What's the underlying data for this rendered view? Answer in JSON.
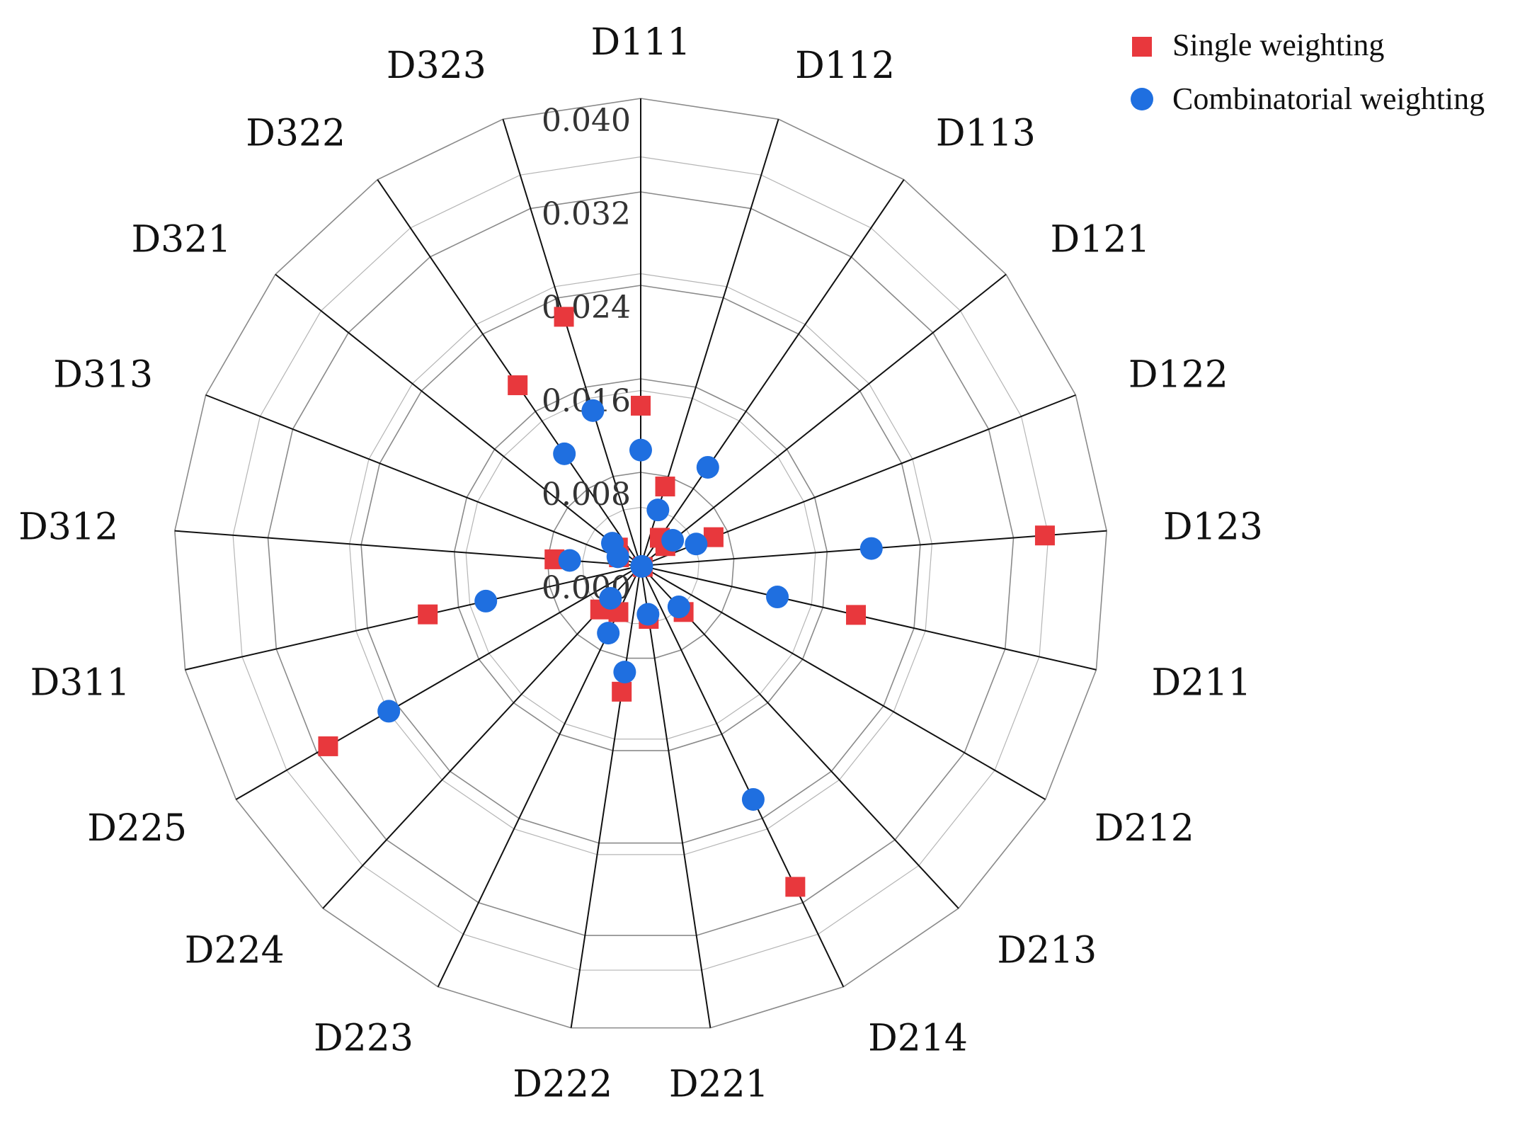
{
  "chart_data": {
    "type": "radar-scatter",
    "axes": [
      "D111",
      "D112",
      "D113",
      "D121",
      "D122",
      "D123",
      "D211",
      "D212",
      "D213",
      "D214",
      "D221",
      "D222",
      "D223",
      "D224",
      "D225",
      "D311",
      "D312",
      "D313",
      "D321",
      "D322",
      "D323"
    ],
    "rlim": [
      0.0,
      0.04
    ],
    "ticks": [
      "0.000",
      "0.008",
      "0.016",
      "0.024",
      "0.032",
      "0.040"
    ],
    "tick_values": [
      0.0,
      0.008,
      0.016,
      0.024,
      0.032,
      0.04
    ],
    "series": [
      {
        "name": "Single weighting",
        "marker": "square",
        "color": "#e8383d",
        "values": [
          0.0137,
          0.0071,
          0.0029,
          0.0027,
          0.0067,
          0.0347,
          0.0189,
          0.0002,
          0.0054,
          0.0305,
          0.0046,
          0.0109,
          0.0044,
          0.0051,
          0.0309,
          0.0187,
          0.0074,
          0.002,
          0.0025,
          0.0187,
          0.0223
        ]
      },
      {
        "name": "Combinatorial weighting",
        "marker": "circle",
        "color": "#1f6fe0",
        "values": [
          0.0099,
          0.005,
          0.0102,
          0.0035,
          0.0051,
          0.0198,
          0.012,
          0.0001,
          0.0048,
          0.0222,
          0.0042,
          0.0092,
          0.0064,
          0.0038,
          0.0249,
          0.0136,
          0.0061,
          0.0021,
          0.0031,
          0.0116,
          0.0139
        ]
      }
    ],
    "legend_position": "top-right",
    "grid": true
  }
}
